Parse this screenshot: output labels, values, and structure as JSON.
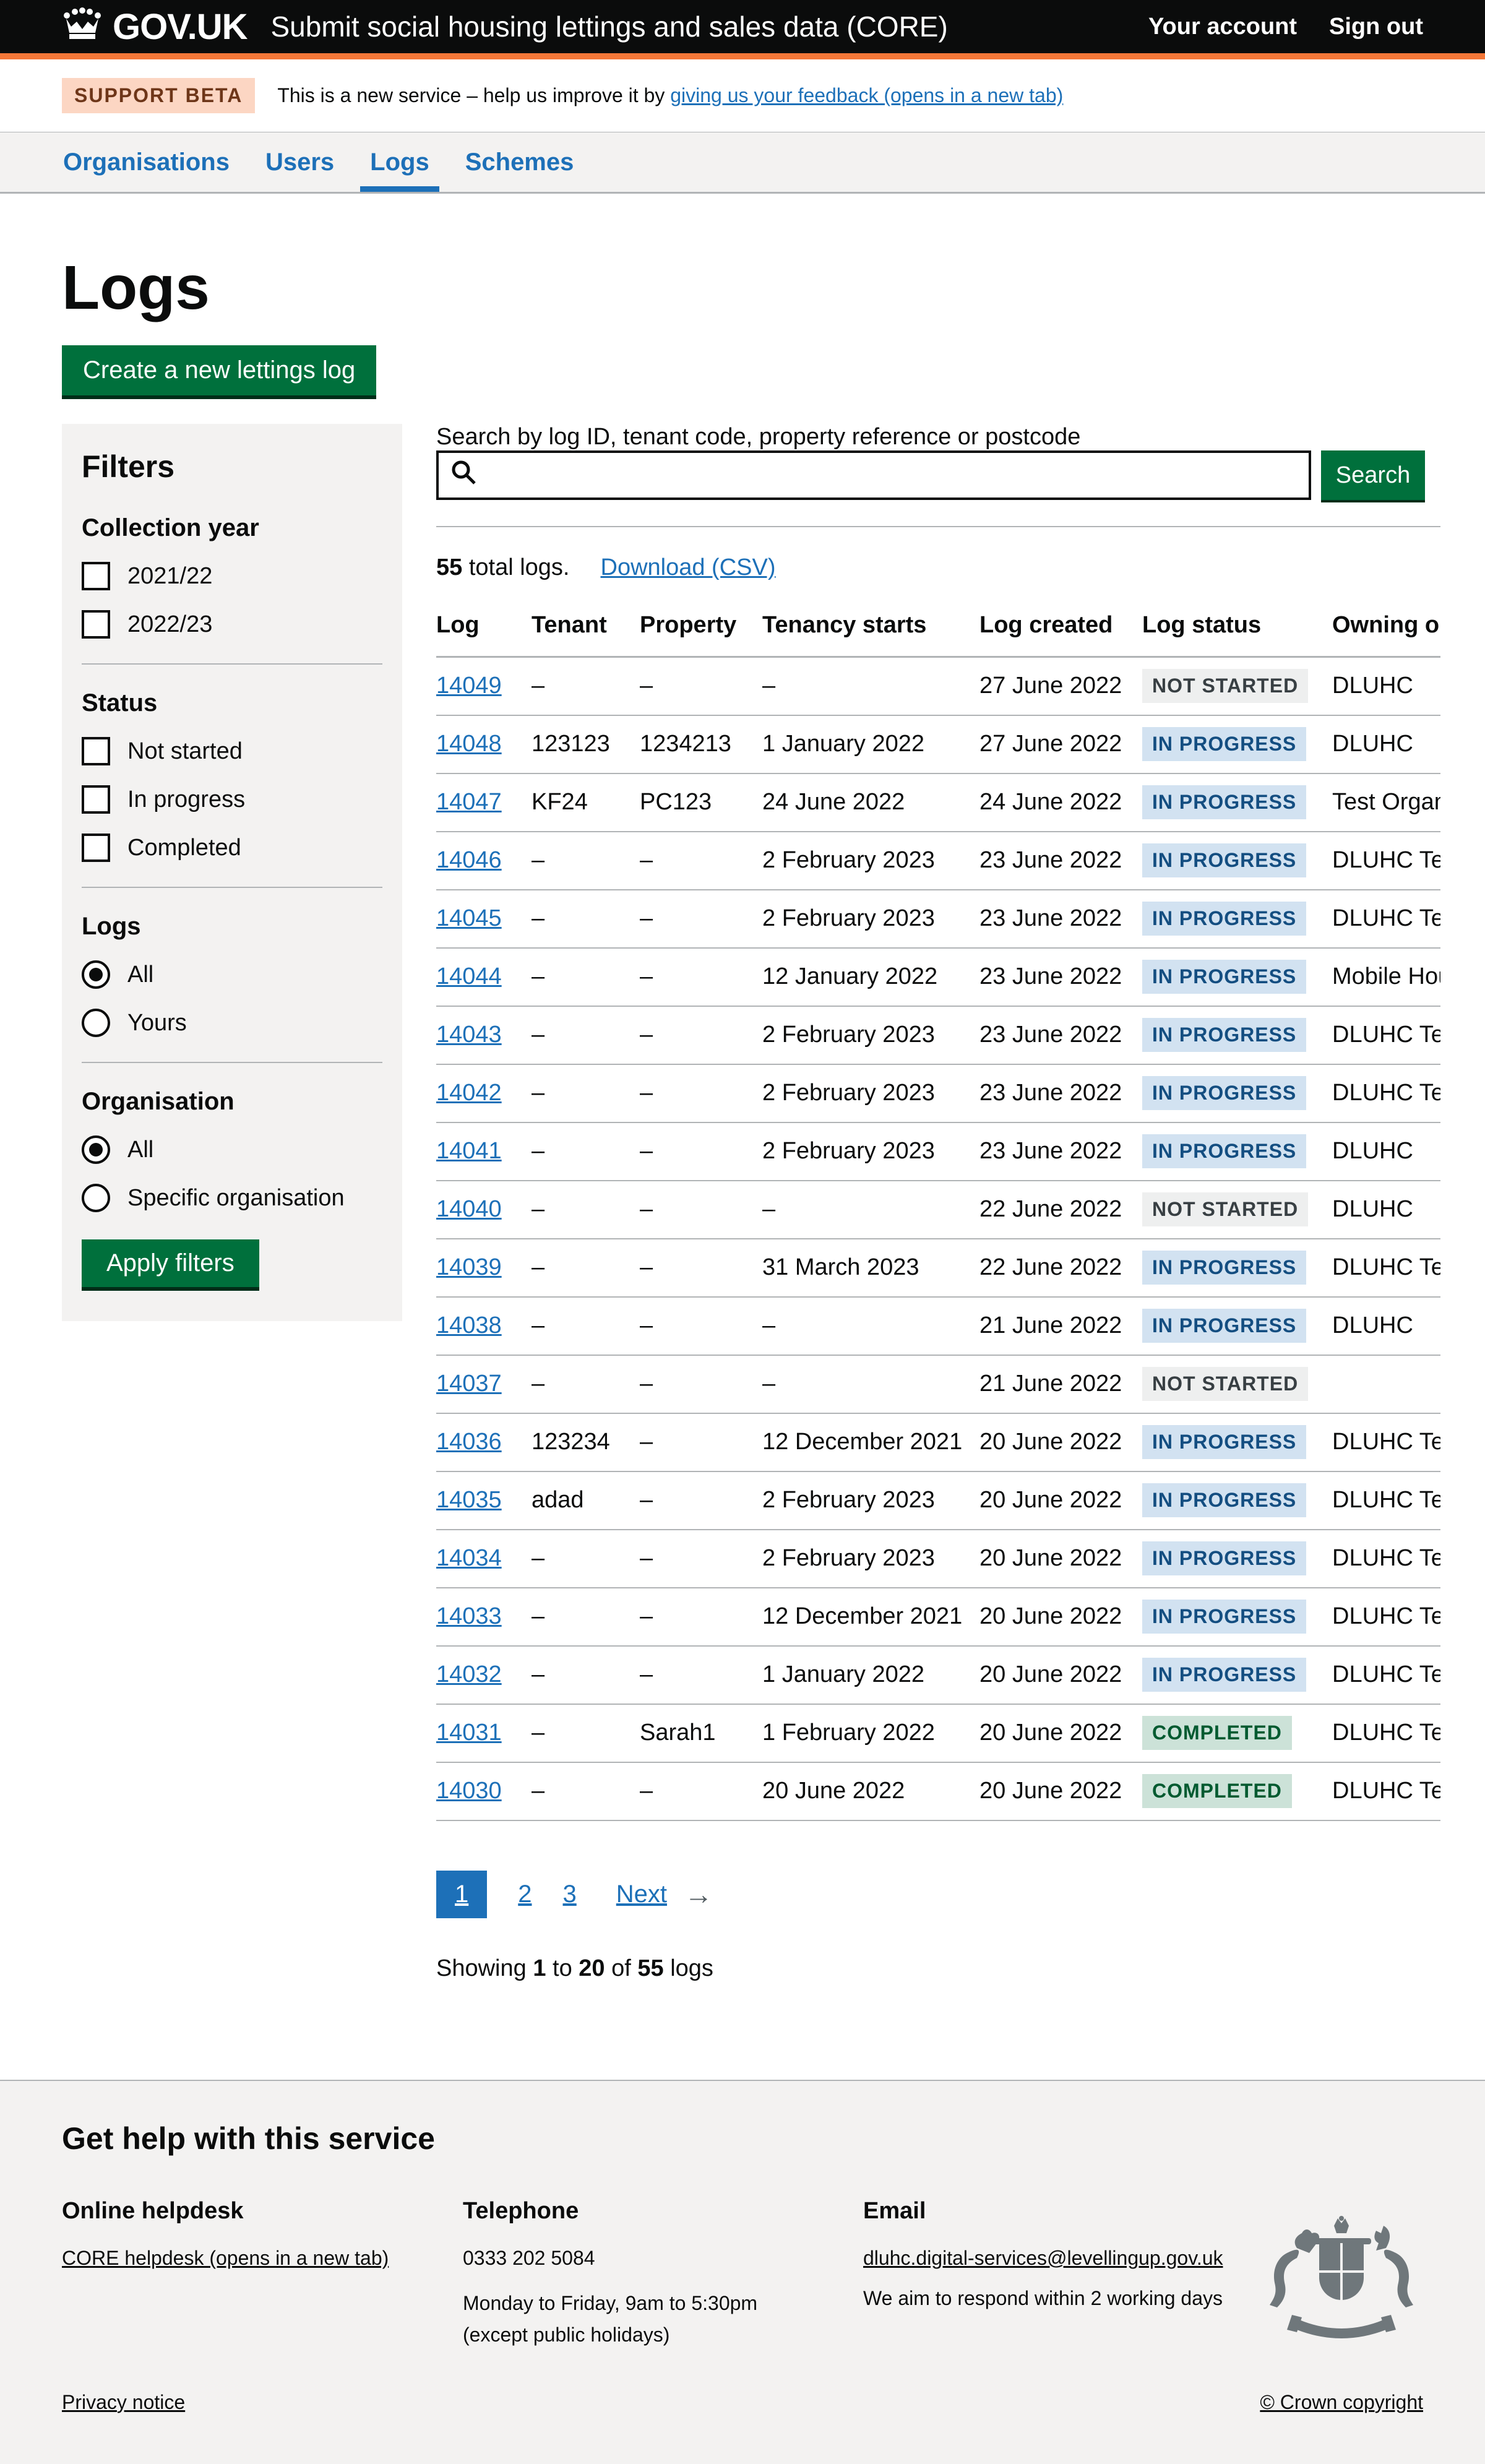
{
  "colors": {
    "header_black": "#0b0c0c",
    "brand_orange": "#f47738",
    "link_blue": "#1d70b8",
    "button_green": "#00703c",
    "panel_grey": "#f3f2f1",
    "border_grey": "#b1b4b6",
    "tag_orange_bg": "#fcd6c3",
    "tag_orange_fg": "#6e3619"
  },
  "header": {
    "logo_text": "GOV.UK",
    "service_name": "Submit social housing lettings and sales data (CORE)",
    "links": [
      {
        "label": "Your account"
      },
      {
        "label": "Sign out"
      }
    ]
  },
  "phase_banner": {
    "tag": "SUPPORT BETA",
    "text": "This is a new service – help us improve it by ",
    "link": "giving us your feedback (opens in a new tab)"
  },
  "nav": {
    "items": [
      {
        "label": "Organisations",
        "active": false
      },
      {
        "label": "Users",
        "active": false
      },
      {
        "label": "Logs",
        "active": true
      },
      {
        "label": "Schemes",
        "active": false
      }
    ]
  },
  "page": {
    "title": "Logs",
    "create_button": "Create a new lettings log"
  },
  "filters": {
    "title": "Filters",
    "apply_button": "Apply filters",
    "groups": [
      {
        "label": "Collection year",
        "type": "checkbox",
        "options": [
          {
            "label": "2021/22",
            "checked": false
          },
          {
            "label": "2022/23",
            "checked": false
          }
        ]
      },
      {
        "label": "Status",
        "type": "checkbox",
        "options": [
          {
            "label": "Not started",
            "checked": false
          },
          {
            "label": "In progress",
            "checked": false
          },
          {
            "label": "Completed",
            "checked": false
          }
        ]
      },
      {
        "label": "Logs",
        "type": "radio",
        "options": [
          {
            "label": "All",
            "checked": true
          },
          {
            "label": "Yours",
            "checked": false
          }
        ]
      },
      {
        "label": "Organisation",
        "type": "radio",
        "options": [
          {
            "label": "All",
            "checked": true
          },
          {
            "label": "Specific organisation",
            "checked": false
          }
        ]
      }
    ]
  },
  "search": {
    "label": "Search by log ID, tenant code, property reference or postcode",
    "value": "",
    "button": "Search"
  },
  "results_summary": {
    "count": "55",
    "label": " total logs.",
    "download_link": "Download (CSV)"
  },
  "status_colors": {
    "grey": {
      "bg": "#eeefef",
      "fg": "#383f43"
    },
    "blue": {
      "bg": "#d2e2f1",
      "fg": "#144e81"
    },
    "green": {
      "bg": "#cce2d8",
      "fg": "#005a30"
    }
  },
  "table": {
    "columns": [
      "Log",
      "Tenant",
      "Property",
      "Tenancy starts",
      "Log created",
      "Log status",
      "Owning organisation"
    ],
    "rows": [
      {
        "log": "14049",
        "tenant": "–",
        "property": "–",
        "tenancy_starts": "–",
        "log_created": "27 June 2022",
        "status": "NOT STARTED",
        "status_type": "grey",
        "owning": "DLUHC"
      },
      {
        "log": "14048",
        "tenant": "123123",
        "property": "1234213",
        "tenancy_starts": "1 January 2022",
        "log_created": "27 June 2022",
        "status": "IN PROGRESS",
        "status_type": "blue",
        "owning": "DLUHC"
      },
      {
        "log": "14047",
        "tenant": "KF24",
        "property": "PC123",
        "tenancy_starts": "24 June 2022",
        "log_created": "24 June 2022",
        "status": "IN PROGRESS",
        "status_type": "blue",
        "owning": "Test Organisation"
      },
      {
        "log": "14046",
        "tenant": "–",
        "property": "–",
        "tenancy_starts": "2 February 2023",
        "log_created": "23 June 2022",
        "status": "IN PROGRESS",
        "status_type": "blue",
        "owning": "DLUHC Test"
      },
      {
        "log": "14045",
        "tenant": "–",
        "property": "–",
        "tenancy_starts": "2 February 2023",
        "log_created": "23 June 2022",
        "status": "IN PROGRESS",
        "status_type": "blue",
        "owning": "DLUHC Test"
      },
      {
        "log": "14044",
        "tenant": "–",
        "property": "–",
        "tenancy_starts": "12 January 2022",
        "log_created": "23 June 2022",
        "status": "IN PROGRESS",
        "status_type": "blue",
        "owning": "Mobile Housing"
      },
      {
        "log": "14043",
        "tenant": "–",
        "property": "–",
        "tenancy_starts": "2 February 2023",
        "log_created": "23 June 2022",
        "status": "IN PROGRESS",
        "status_type": "blue",
        "owning": "DLUHC Test"
      },
      {
        "log": "14042",
        "tenant": "–",
        "property": "–",
        "tenancy_starts": "2 February 2023",
        "log_created": "23 June 2022",
        "status": "IN PROGRESS",
        "status_type": "blue",
        "owning": "DLUHC Test"
      },
      {
        "log": "14041",
        "tenant": "–",
        "property": "–",
        "tenancy_starts": "2 February 2023",
        "log_created": "23 June 2022",
        "status": "IN PROGRESS",
        "status_type": "blue",
        "owning": "DLUHC"
      },
      {
        "log": "14040",
        "tenant": "–",
        "property": "–",
        "tenancy_starts": "–",
        "log_created": "22 June 2022",
        "status": "NOT STARTED",
        "status_type": "grey",
        "owning": "DLUHC"
      },
      {
        "log": "14039",
        "tenant": "–",
        "property": "–",
        "tenancy_starts": "31 March 2023",
        "log_created": "22 June 2022",
        "status": "IN PROGRESS",
        "status_type": "blue",
        "owning": "DLUHC Test"
      },
      {
        "log": "14038",
        "tenant": "–",
        "property": "–",
        "tenancy_starts": "–",
        "log_created": "21 June 2022",
        "status": "IN PROGRESS",
        "status_type": "blue",
        "owning": "DLUHC"
      },
      {
        "log": "14037",
        "tenant": "–",
        "property": "–",
        "tenancy_starts": "–",
        "log_created": "21 June 2022",
        "status": "NOT STARTED",
        "status_type": "grey",
        "owning": ""
      },
      {
        "log": "14036",
        "tenant": "123234",
        "property": "–",
        "tenancy_starts": "12 December 2021",
        "log_created": "20 June 2022",
        "status": "IN PROGRESS",
        "status_type": "blue",
        "owning": "DLUHC Test"
      },
      {
        "log": "14035",
        "tenant": "adad",
        "property": "–",
        "tenancy_starts": "2 February 2023",
        "log_created": "20 June 2022",
        "status": "IN PROGRESS",
        "status_type": "blue",
        "owning": "DLUHC Test"
      },
      {
        "log": "14034",
        "tenant": "–",
        "property": "–",
        "tenancy_starts": "2 February 2023",
        "log_created": "20 June 2022",
        "status": "IN PROGRESS",
        "status_type": "blue",
        "owning": "DLUHC Test"
      },
      {
        "log": "14033",
        "tenant": "–",
        "property": "–",
        "tenancy_starts": "12 December 2021",
        "log_created": "20 June 2022",
        "status": "IN PROGRESS",
        "status_type": "blue",
        "owning": "DLUHC Test"
      },
      {
        "log": "14032",
        "tenant": "–",
        "property": "–",
        "tenancy_starts": "1 January 2022",
        "log_created": "20 June 2022",
        "status": "IN PROGRESS",
        "status_type": "blue",
        "owning": "DLUHC Test"
      },
      {
        "log": "14031",
        "tenant": "–",
        "property": "Sarah1",
        "tenancy_starts": "1 February 2022",
        "log_created": "20 June 2022",
        "status": "COMPLETED",
        "status_type": "green",
        "owning": "DLUHC Test"
      },
      {
        "log": "14030",
        "tenant": "–",
        "property": "–",
        "tenancy_starts": "20 June 2022",
        "log_created": "20 June 2022",
        "status": "COMPLETED",
        "status_type": "green",
        "owning": "DLUHC Test"
      }
    ]
  },
  "pagination": {
    "current": "1",
    "pages": [
      "2",
      "3"
    ],
    "next": "Next",
    "arrow": "→"
  },
  "showing": {
    "p1": "Showing ",
    "b1": "1",
    "p2": " to ",
    "b2": "20",
    "p3": " of ",
    "b3": "55",
    "p4": " logs"
  },
  "footer": {
    "heading": "Get help with this service",
    "columns": [
      {
        "heading": "Online helpdesk",
        "link": "CORE helpdesk (opens in a new tab)"
      },
      {
        "heading": "Telephone",
        "lines": [
          "0333 202 5084",
          "Monday to Friday, 9am to 5:30pm",
          "(except public holidays)"
        ]
      },
      {
        "heading": "Email",
        "link": "dluhc.digital-services@levellingup.gov.uk",
        "lines": [
          "We aim to respond within 2 working days"
        ]
      }
    ],
    "privacy_link": "Privacy notice",
    "copyright": "© Crown copyright"
  }
}
